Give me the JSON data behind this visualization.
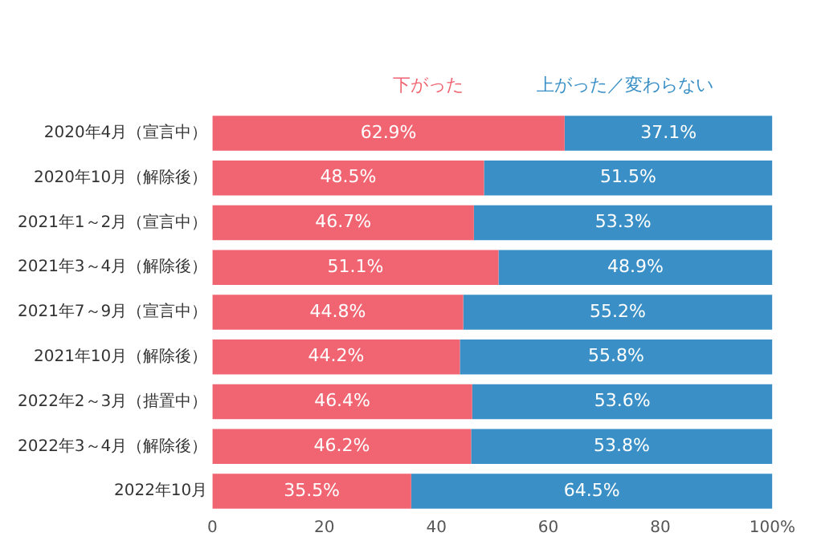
{
  "chart_data": {
    "type": "bar",
    "orientation": "horizontal",
    "stacked": true,
    "legend": "top",
    "grid": false,
    "categories": [
      "2020年4月（宣言中）",
      "2020年10月（解除後）",
      "2021年1～2月（宣言中）",
      "2021年3～4月（解除後）",
      "2021年7～9月（宣言中）",
      "2021年10月（解除後）",
      "2022年2～3月（措置中）",
      "2022年3～4月（解除後）",
      "2022年10月"
    ],
    "series": [
      {
        "name": "下がった",
        "color": "#f06571",
        "values": [
          62.9,
          48.5,
          46.7,
          51.1,
          44.8,
          44.2,
          46.4,
          46.2,
          35.5
        ],
        "value_labels": [
          "62.9%",
          "48.5%",
          "46.7%",
          "51.1%",
          "44.8%",
          "44.2%",
          "46.4%",
          "46.2%",
          "35.5%"
        ]
      },
      {
        "name": "上がった／変わらない",
        "color": "#3a90c6",
        "values": [
          37.1,
          51.5,
          53.3,
          48.9,
          55.2,
          55.8,
          53.6,
          53.8,
          64.5
        ],
        "value_labels": [
          "37.1%",
          "51.5%",
          "53.3%",
          "48.9%",
          "55.2%",
          "55.8%",
          "53.6%",
          "53.8%",
          "64.5%"
        ]
      }
    ],
    "xlim": [
      0,
      100
    ],
    "xticks": [
      0,
      20,
      40,
      60,
      80,
      {
        "value": 100,
        "label": "100%"
      }
    ]
  }
}
